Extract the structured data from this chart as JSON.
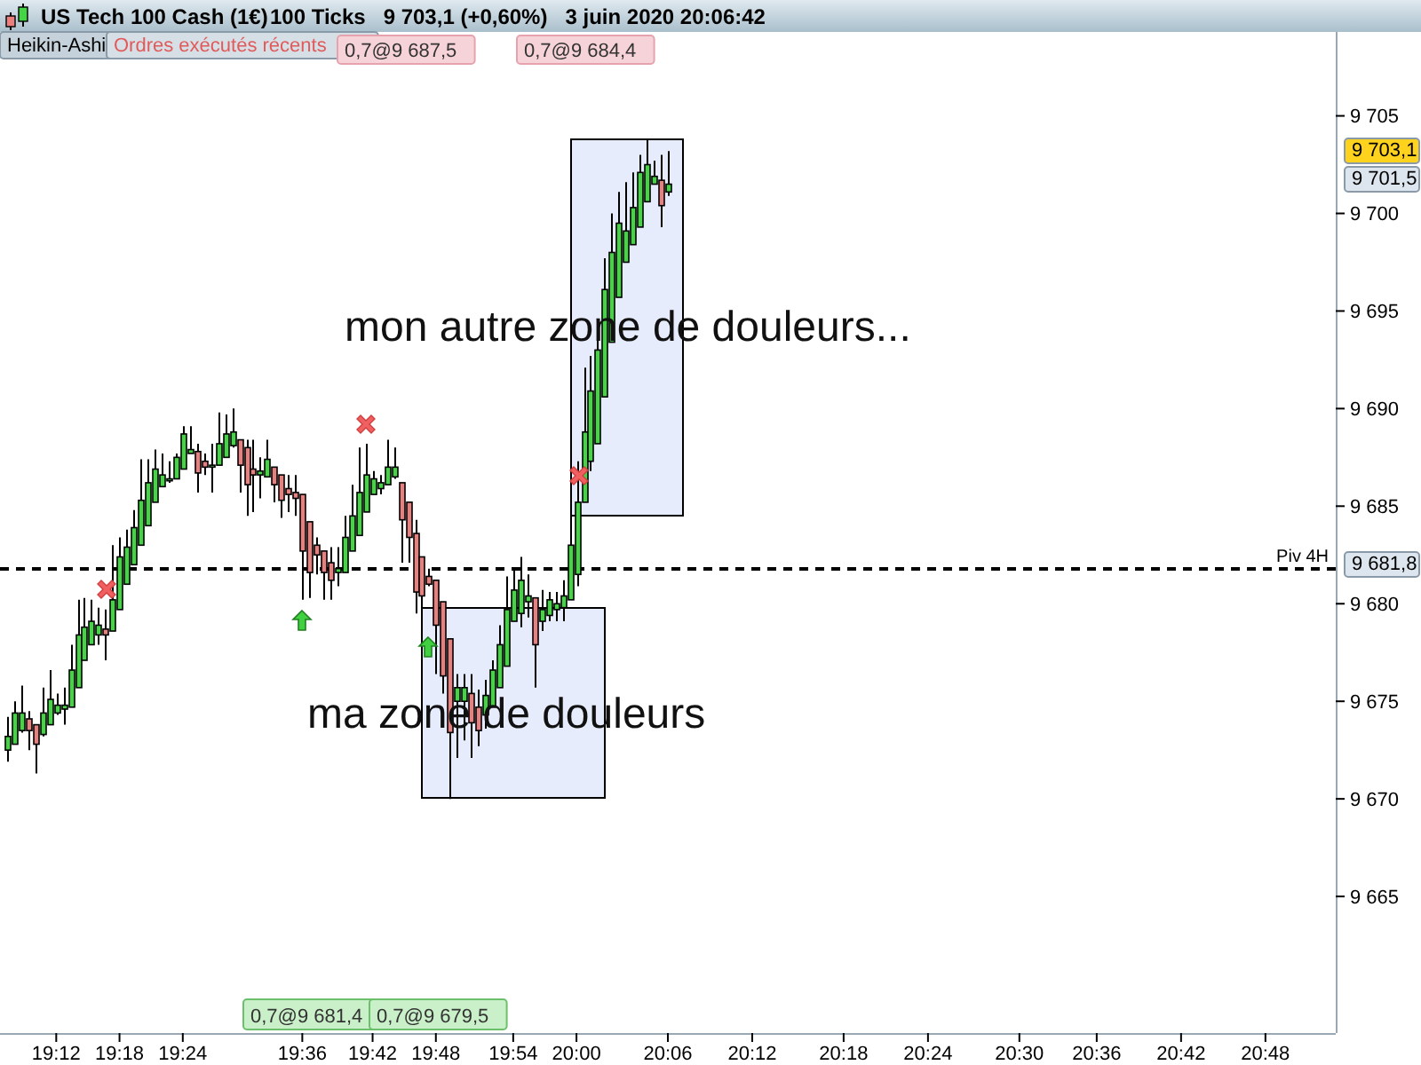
{
  "chart_data": {
    "type": "candlestick",
    "title": "US Tech 100 Cash (1€)",
    "subtitle": "100 Ticks   9 703,1 (+0,60%)   3 juin 2020 20:06:42",
    "categories": [
      null,
      null,
      null,
      null,
      null,
      null,
      null,
      "19:12",
      null,
      null,
      null,
      null,
      null,
      null,
      null,
      null,
      "19:18",
      null,
      null,
      null,
      null,
      null,
      null,
      null,
      null,
      "19:24",
      null,
      null,
      null,
      null,
      null,
      null,
      null,
      null,
      null,
      null,
      null,
      null,
      null,
      null,
      null,
      null,
      "19:36",
      null,
      null,
      null,
      null,
      null,
      null,
      null,
      null,
      null,
      "19:42",
      null,
      null,
      null,
      null,
      null,
      null,
      null,
      null,
      "19:48",
      null,
      null,
      null,
      null,
      null,
      null,
      null,
      null,
      null,
      null,
      "19:54",
      null,
      null,
      null,
      null,
      null,
      null,
      null,
      null,
      "20:00",
      null,
      null,
      null,
      null,
      null,
      null,
      null,
      null,
      null,
      null,
      null,
      null,
      "20:06",
      null,
      null,
      null,
      null,
      null,
      null,
      null,
      null,
      null,
      null,
      null,
      "20:12",
      null,
      null,
      null,
      null,
      null,
      null,
      null,
      null,
      null,
      null,
      null,
      null,
      "20:18",
      null,
      null,
      null,
      null,
      null,
      null,
      null,
      null,
      null,
      null,
      null,
      "20:24",
      null,
      null,
      null,
      null,
      null,
      null,
      null,
      null,
      null,
      null,
      null,
      null,
      "20:30",
      null,
      null,
      null,
      null,
      null,
      null,
      null,
      null,
      null,
      null,
      "20:36",
      null,
      null,
      null,
      null,
      null,
      null,
      null,
      null,
      null,
      null,
      null,
      "20:42",
      null,
      null,
      null,
      null,
      null,
      null,
      null,
      null,
      null,
      null,
      null,
      "20:48",
      null,
      null,
      null,
      null,
      null,
      null,
      null,
      null,
      null
    ],
    "ohlc": [
      [
        9672.5,
        9674.2,
        9671.9,
        9673.2
      ],
      [
        9672.8,
        9675.0,
        9672.8,
        9674.4
      ],
      [
        9673.5,
        9675.8,
        9673.4,
        9674.4
      ],
      [
        9674.1,
        9674.5,
        9672.5,
        9673.5
      ],
      [
        9673.8,
        9673.8,
        9671.3,
        9672.8
      ],
      [
        9673.3,
        9675.7,
        9673.2,
        9674.4
      ],
      [
        9673.8,
        9676.6,
        9673.8,
        9675.1
      ],
      [
        9674.4,
        9675.4,
        9674.3,
        9674.8
      ],
      [
        9674.6,
        9675.7,
        9673.8,
        9674.8
      ],
      [
        9674.7,
        9677.9,
        9674.7,
        9676.6
      ],
      [
        9675.7,
        9680.2,
        9675.7,
        9678.4
      ],
      [
        9677.1,
        9680.3,
        9677.1,
        9678.8
      ],
      [
        9677.9,
        9680.2,
        9677.9,
        9679.1
      ],
      [
        9678.4,
        9679.8,
        9677.9,
        9678.9
      ],
      [
        9678.7,
        9679.7,
        9677.1,
        9678.4
      ],
      [
        9678.6,
        9683.0,
        9678.6,
        9680.2
      ],
      [
        9679.7,
        9683.4,
        9679.7,
        9682.4
      ],
      [
        9681.0,
        9683.8,
        9681.0,
        9682.9
      ],
      [
        9682.0,
        9684.8,
        9682.0,
        9683.9
      ],
      [
        9683.0,
        9687.4,
        9683.0,
        9685.3
      ],
      [
        9684.0,
        9687.4,
        9684.0,
        9686.2
      ],
      [
        9685.2,
        9687.9,
        9685.2,
        9686.9
      ],
      [
        9686.0,
        9687.7,
        9686.0,
        9686.6
      ],
      [
        9686.3,
        9687.3,
        9686.2,
        9686.4
      ],
      [
        9686.4,
        9687.7,
        9686.4,
        9687.5
      ],
      [
        9686.9,
        9689.1,
        9686.9,
        9688.7
      ],
      [
        9687.7,
        9689.1,
        9687.7,
        9687.9
      ],
      [
        9687.8,
        9688.2,
        9685.7,
        9686.7
      ],
      [
        9687.3,
        9687.7,
        9686.6,
        9687.0
      ],
      [
        9687.0,
        9688.2,
        9685.7,
        9687.1
      ],
      [
        9687.1,
        9689.8,
        9687.1,
        9688.2
      ],
      [
        9687.5,
        9689.7,
        9687.5,
        9688.7
      ],
      [
        9688.1,
        9690.0,
        9688.0,
        9688.8
      ],
      [
        9688.4,
        9688.4,
        9685.7,
        9687.1
      ],
      [
        9688.0,
        9688.4,
        9684.5,
        9686.1
      ],
      [
        9686.9,
        9688.4,
        9684.7,
        9686.6
      ],
      [
        9686.6,
        9687.5,
        9685.4,
        9686.8
      ],
      [
        9686.5,
        9688.4,
        9686.5,
        9687.4
      ],
      [
        9687.0,
        9687.0,
        9685.2,
        9686.1
      ],
      [
        9686.6,
        9686.6,
        9684.4,
        9685.3
      ],
      [
        9685.9,
        9686.6,
        9684.7,
        9685.6
      ],
      [
        9685.7,
        9686.6,
        9684.5,
        9685.4
      ],
      [
        9685.6,
        9685.6,
        9680.2,
        9682.7
      ],
      [
        9684.2,
        9684.2,
        9680.3,
        9681.6
      ],
      [
        9683.0,
        9683.4,
        9681.5,
        9682.5
      ],
      [
        9682.7,
        9682.7,
        9680.2,
        9681.6
      ],
      [
        9682.1,
        9682.9,
        9680.2,
        9681.2
      ],
      [
        9681.6,
        9682.9,
        9680.9,
        9681.8
      ],
      [
        9681.6,
        9684.5,
        9681.6,
        9683.4
      ],
      [
        9682.7,
        9686.1,
        9682.7,
        9684.5
      ],
      [
        9683.5,
        9688.0,
        9683.5,
        9685.7
      ],
      [
        9684.7,
        9688.2,
        9684.7,
        9686.6
      ],
      [
        9685.6,
        9686.8,
        9685.6,
        9686.4
      ],
      [
        9685.9,
        9686.6,
        9685.6,
        9686.2
      ],
      [
        9686.1,
        9688.4,
        9686.1,
        9687.0
      ],
      [
        9686.5,
        9688.0,
        9686.4,
        9687.0
      ],
      [
        9686.2,
        9686.2,
        9682.1,
        9684.3
      ],
      [
        9685.2,
        9685.2,
        9682.1,
        9683.4
      ],
      [
        9683.6,
        9684.3,
        9679.5,
        9680.6
      ],
      [
        9682.4,
        9682.4,
        9678.8,
        9680.4
      ],
      [
        9681.4,
        9681.8,
        9680.9,
        9681.0
      ],
      [
        9681.2,
        9681.2,
        9676.4,
        9678.9
      ],
      [
        9680.1,
        9680.1,
        9675.4,
        9676.3
      ],
      [
        9678.2,
        9678.2,
        9670.0,
        9673.4
      ],
      [
        9675.0,
        9676.4,
        9672.1,
        9675.7
      ],
      [
        9675.0,
        9676.4,
        9673.0,
        9675.7
      ],
      [
        9675.4,
        9676.4,
        9672.1,
        9673.9
      ],
      [
        9674.7,
        9675.6,
        9672.7,
        9673.5
      ],
      [
        9674.3,
        9676.1,
        9673.6,
        9675.3
      ],
      [
        9674.7,
        9677.1,
        9674.7,
        9676.6
      ],
      [
        9675.7,
        9678.9,
        9675.7,
        9677.9
      ],
      [
        9676.8,
        9681.4,
        9676.8,
        9679.7
      ],
      [
        9679.1,
        9681.8,
        9679.1,
        9680.7
      ],
      [
        9679.5,
        9682.4,
        9678.8,
        9681.2
      ],
      [
        9680.1,
        9681.5,
        9679.3,
        9680.4
      ],
      [
        9680.3,
        9680.3,
        9675.7,
        9677.9
      ],
      [
        9679.1,
        9680.7,
        9678.6,
        9679.7
      ],
      [
        9679.4,
        9680.6,
        9679.1,
        9680.2
      ],
      [
        9679.7,
        9680.6,
        9679.1,
        9680.0
      ],
      [
        9679.8,
        9681.2,
        9679.1,
        9680.4
      ],
      [
        9680.2,
        9684.5,
        9680.2,
        9683.0
      ],
      [
        9681.5,
        9687.3,
        9680.9,
        9685.2
      ],
      [
        9685.2,
        9692.1,
        9685.2,
        9688.8
      ],
      [
        9687.3,
        9692.7,
        9686.8,
        9690.9
      ],
      [
        9688.2,
        9694.5,
        9688.2,
        9693.0
      ],
      [
        9690.6,
        9697.7,
        9690.6,
        9696.1
      ],
      [
        9693.4,
        9700.0,
        9693.4,
        9698.0
      ],
      [
        9695.7,
        9701.1,
        9695.7,
        9699.5
      ],
      [
        9697.5,
        9701.6,
        9697.5,
        9699.1
      ],
      [
        9698.4,
        9702.1,
        9698.4,
        9700.3
      ],
      [
        9699.3,
        9703.0,
        9699.3,
        9702.1
      ],
      [
        9700.6,
        9703.8,
        9700.6,
        9702.5
      ],
      [
        9701.5,
        9702.7,
        9701.5,
        9701.9
      ],
      [
        9701.7,
        9703.0,
        9699.3,
        9700.4
      ],
      [
        9701.1,
        9703.2,
        9700.9,
        9701.5
      ],
      null,
      null,
      null,
      null,
      null,
      null,
      null,
      null,
      null,
      null,
      null,
      null,
      null,
      null,
      null,
      null,
      null,
      null,
      null,
      null,
      null,
      null,
      null,
      null,
      null,
      null,
      null,
      null,
      null,
      null,
      null,
      null,
      null,
      null,
      null,
      null,
      null,
      null,
      null,
      null,
      null,
      null,
      null,
      null,
      null,
      null,
      null,
      null,
      null,
      null,
      null,
      null,
      null,
      null,
      null,
      null,
      null,
      null,
      null,
      null,
      null,
      null,
      null,
      null,
      null,
      null,
      null,
      null,
      null,
      null,
      null,
      null,
      null,
      null,
      null,
      null,
      null,
      null,
      null,
      null,
      null,
      null,
      null,
      null,
      null,
      null,
      null,
      null,
      null,
      null,
      null,
      null,
      null,
      null
    ],
    "colors": [
      "#44d444",
      "#44d444",
      "#44d444",
      "#e88080",
      "#e88080",
      "#44d444",
      "#44d444",
      "#44d444",
      "#44d444",
      "#44d444",
      "#44d444",
      "#44d444",
      "#44d444",
      "#44d444",
      "#e88080",
      "#44d444",
      "#44d444",
      "#44d444",
      "#44d444",
      "#44d444",
      "#44d444",
      "#44d444",
      "#44d444",
      "#44d444",
      "#44d444",
      "#44d444",
      "#44d444",
      "#e88080",
      "#e88080",
      "#44d444",
      "#44d444",
      "#44d444",
      "#44d444",
      "#e88080",
      "#e88080",
      "#e88080",
      "#44d444",
      "#44d444",
      "#e88080",
      "#e88080",
      "#e88080",
      "#e88080",
      "#e88080",
      "#e88080",
      "#e88080",
      "#e88080",
      "#e88080",
      "#44d444",
      "#44d444",
      "#44d444",
      "#44d444",
      "#44d444",
      "#44d444",
      "#44d444",
      "#44d444",
      "#44d444",
      "#e88080",
      "#e88080",
      "#e88080",
      "#e88080",
      "#e88080",
      "#e88080",
      "#e88080",
      "#e88080",
      "#44d444",
      "#44d444",
      "#e88080",
      "#e88080",
      "#44d444",
      "#44d444",
      "#44d444",
      "#44d444",
      "#44d444",
      "#44d444",
      "#44d444",
      "#e88080",
      "#44d444",
      "#44d444",
      "#44d444",
      "#44d444",
      "#44d444",
      "#44d444",
      "#44d444",
      "#44d444",
      "#44d444",
      "#44d444",
      "#44d444",
      "#44d444",
      "#44d444",
      "#44d444",
      "#44d444",
      "#44d444",
      "#44d444",
      "#e88080",
      "#44d444",
      null,
      null,
      null,
      null,
      null,
      null,
      null,
      null,
      null,
      null,
      null,
      null,
      null,
      null,
      null,
      null,
      null,
      null,
      null,
      null,
      null,
      null,
      null,
      null,
      null,
      null,
      null,
      null,
      null,
      null,
      null,
      null,
      null,
      null,
      null,
      null,
      null,
      null,
      null,
      null,
      null,
      null,
      null,
      null,
      null,
      null,
      null,
      null,
      null,
      null,
      null,
      null,
      null,
      null,
      null,
      null,
      null,
      null,
      null,
      null,
      null,
      null,
      null,
      null,
      null,
      null,
      null,
      null,
      null,
      null,
      null,
      null,
      null,
      null,
      null,
      null,
      null,
      null,
      null,
      null,
      null,
      null,
      null,
      null,
      null,
      null,
      null,
      null,
      null,
      null,
      null,
      null,
      null,
      null
    ],
    "ylim": [
      9658,
      9709.3
    ],
    "yticks": [
      {
        "value": 9665,
        "label": "9 665"
      },
      {
        "value": 9670,
        "label": "9 670"
      },
      {
        "value": 9675,
        "label": "9 675"
      },
      {
        "value": 9680,
        "label": "9 680"
      },
      {
        "value": 9685,
        "label": "9 685"
      },
      {
        "value": 9690,
        "label": "9 690"
      },
      {
        "value": 9695,
        "label": "9 695"
      },
      {
        "value": 9700,
        "label": "9 700"
      },
      {
        "value": 9705,
        "label": "9 705"
      }
    ],
    "ref_lines": [
      {
        "axis": "y",
        "value": 9681.8,
        "label": "Piv 4H",
        "color": "#000000",
        "line_style": "dashed"
      }
    ],
    "bands": [
      {
        "axis": "y",
        "from": 9670.1,
        "to": 9679.8,
        "label": "ma zone de douleurs",
        "color": "#e6ecfb"
      },
      {
        "axis": "y",
        "from": 9684.6,
        "to": 9703.8,
        "label": "mon autre zone de douleurs...",
        "color": "#e6ecfb"
      }
    ],
    "annotations": [
      "Heikin-Ashi",
      "Ordres exécutés récents",
      "0,7@9 687,5",
      "0,7@9 684,4",
      "0,7@9 681,4",
      "0,7@9 679,5",
      "9 703,1",
      "9 701,5",
      "9 681,8"
    ]
  }
}
